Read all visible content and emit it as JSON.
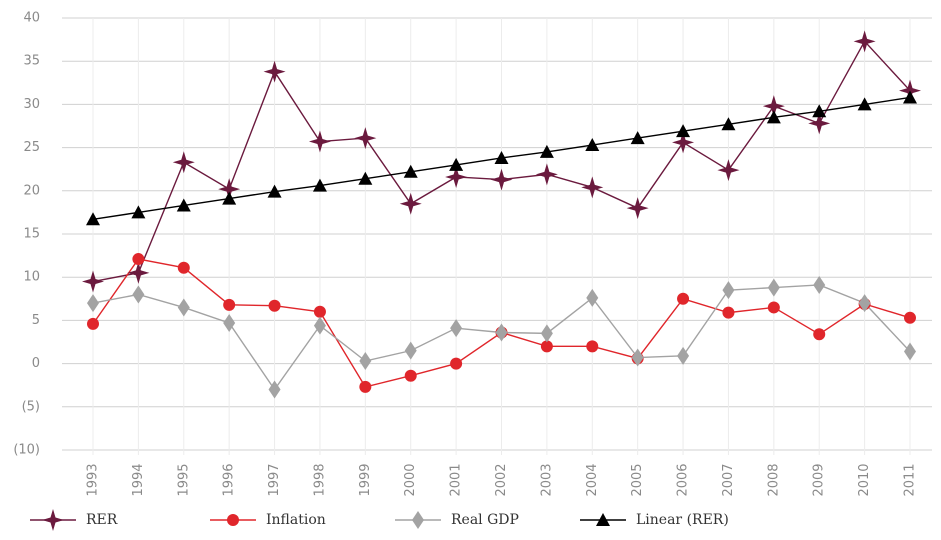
{
  "chart_data": {
    "type": "line",
    "categories": [
      "1993",
      "1994",
      "1995",
      "1996",
      "1997",
      "1998",
      "1999",
      "2000",
      "2001",
      "2002",
      "2003",
      "2004",
      "2005",
      "2006",
      "2007",
      "2008",
      "2009",
      "2010",
      "2011"
    ],
    "series": [
      {
        "name": "RER",
        "color": "#6b1a3e",
        "marker": "star",
        "values": [
          9.5,
          10.5,
          23.3,
          20.2,
          33.8,
          25.7,
          26.1,
          18.5,
          21.6,
          21.3,
          21.9,
          20.4,
          18.0,
          25.6,
          22.4,
          29.8,
          27.8,
          37.3,
          31.6
        ]
      },
      {
        "name": "Inflation",
        "color": "#e0262b",
        "marker": "circle",
        "values": [
          4.6,
          12.1,
          11.1,
          6.8,
          6.7,
          6.0,
          -2.7,
          -1.4,
          0,
          3.6,
          2.0,
          2.0,
          0.6,
          7.5,
          5.9,
          6.5,
          3.4,
          6.9,
          5.3
        ]
      },
      {
        "name": "Real GDP",
        "color": "#a3a3a3",
        "marker": "diamond",
        "values": [
          7.0,
          8.0,
          6.5,
          4.7,
          -3.0,
          4.4,
          0.3,
          1.5,
          4.1,
          3.6,
          3.5,
          7.6,
          0.7,
          0.9,
          8.5,
          8.8,
          9.1,
          7.0,
          1.4
        ]
      },
      {
        "name": "Linear (RER)",
        "color": "#000000",
        "marker": "triangle",
        "values": [
          16.7,
          17.5,
          18.3,
          19.1,
          19.9,
          20.6,
          21.4,
          22.2,
          23.0,
          23.8,
          24.5,
          25.3,
          26.1,
          26.9,
          27.7,
          28.5,
          29.2,
          30.0,
          30.8
        ]
      }
    ],
    "ylim": [
      -10,
      40
    ],
    "yticks": [
      {
        "value": -10,
        "label": "(10)"
      },
      {
        "value": -5,
        "label": "(5)"
      },
      0,
      5,
      10,
      15,
      20,
      25,
      30,
      35,
      40
    ],
    "grid": true,
    "legend": "bottom"
  }
}
